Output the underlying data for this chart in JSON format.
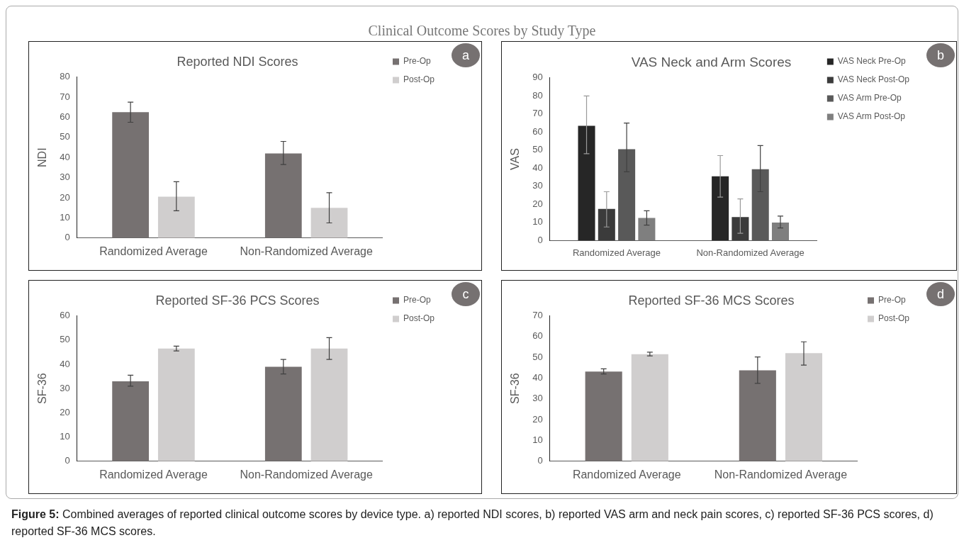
{
  "chart_data": [
    {
      "type": "bar",
      "title": "Reported NDI Scores",
      "ylabel": "NDI",
      "categories": [
        "Randomized Average",
        "Non-Randomized Average"
      ],
      "series": [
        {
          "name": "Pre-Op",
          "color": "#767171",
          "values": [
            62.5,
            42
          ],
          "errors": [
            [
              57.5,
              67.5
            ],
            [
              36.5,
              48
            ]
          ]
        },
        {
          "name": "Post-Op",
          "color": "#d0cece",
          "values": [
            20.5,
            15
          ],
          "errors": [
            [
              13.5,
              28
            ],
            [
              7.5,
              22.5
            ]
          ]
        }
      ],
      "ylim": [
        0,
        80
      ],
      "yticks": [
        0,
        10,
        20,
        30,
        40,
        50,
        60,
        70,
        80
      ],
      "grid": false,
      "legend": "top right",
      "annotations": [
        "Clinical Outcome Scores by Study Type",
        "a"
      ]
    },
    {
      "type": "bar",
      "title": "VAS Neck and Arm Scores",
      "ylabel": "VAS",
      "categories": [
        "Randomized Average",
        "Non-Randomized Average"
      ],
      "series": [
        {
          "name": "VAS Neck Pre-Op",
          "color": "#262626",
          "values": [
            63.5,
            35.5
          ],
          "errors": [
            [
              48,
              80
            ],
            [
              24,
              47
            ]
          ]
        },
        {
          "name": "VAS Neck Post-Op",
          "color": "#3b3b3b",
          "values": [
            17.5,
            13
          ],
          "errors": [
            [
              7.5,
              27
            ],
            [
              4,
              23
            ]
          ]
        },
        {
          "name": "VAS Arm Pre-Op",
          "color": "#595959",
          "values": [
            50.5,
            39.5
          ],
          "errors": [
            [
              38,
              65
            ],
            [
              27,
              52.5
            ]
          ]
        },
        {
          "name": "VAS Arm Post-Op",
          "color": "#7f7f7f",
          "values": [
            12.5,
            10
          ],
          "errors": [
            [
              8.5,
              16.5
            ],
            [
              7,
              13.5
            ]
          ]
        }
      ],
      "ylim": [
        0,
        90
      ],
      "yticks": [
        0,
        10,
        20,
        30,
        40,
        50,
        60,
        70,
        80,
        90
      ],
      "grid": false,
      "legend": "top right",
      "annotations": [
        "b"
      ]
    },
    {
      "type": "bar",
      "title": "Reported SF-36 PCS Scores",
      "ylabel": "SF-36",
      "categories": [
        "Randomized Average",
        "Non-Randomized Average"
      ],
      "series": [
        {
          "name": "Pre-Op",
          "color": "#767171",
          "values": [
            33,
            39
          ],
          "errors": [
            [
              31,
              35.5
            ],
            [
              36,
              42
            ]
          ]
        },
        {
          "name": "Post-Op",
          "color": "#d0cece",
          "values": [
            46.5,
            46.5
          ],
          "errors": [
            [
              45.5,
              47.5
            ],
            [
              42,
              51
            ]
          ]
        }
      ],
      "ylim": [
        0,
        60
      ],
      "yticks": [
        0,
        10,
        20,
        30,
        40,
        50,
        60
      ],
      "grid": false,
      "legend": "top right",
      "annotations": [
        "c"
      ]
    },
    {
      "type": "bar",
      "title": "Reported SF-36 MCS Scores",
      "ylabel": "SF-36",
      "categories": [
        "Randomized Average",
        "Non-Randomized Average"
      ],
      "series": [
        {
          "name": "Pre-Op",
          "color": "#767171",
          "values": [
            43.2,
            43.8
          ],
          "errors": [
            [
              42,
              44.5
            ],
            [
              37.5,
              50.2
            ]
          ]
        },
        {
          "name": "Post-Op",
          "color": "#d0cece",
          "values": [
            51.5,
            52
          ],
          "errors": [
            [
              50.7,
              52.5
            ],
            [
              46.3,
              57.5
            ]
          ]
        }
      ],
      "ylim": [
        0,
        70
      ],
      "yticks": [
        0,
        10,
        20,
        30,
        40,
        50,
        60,
        70
      ],
      "grid": false,
      "legend": "top right",
      "annotations": [
        "d",
        "Figure 5: Combined averages of reported clinical outcome scores by device type. a) reported NDI scores, b) reported VAS arm and neck pain scores, c) reported SF-36 PCS scores, d) reported SF-36 MCS scores."
      ]
    }
  ]
}
